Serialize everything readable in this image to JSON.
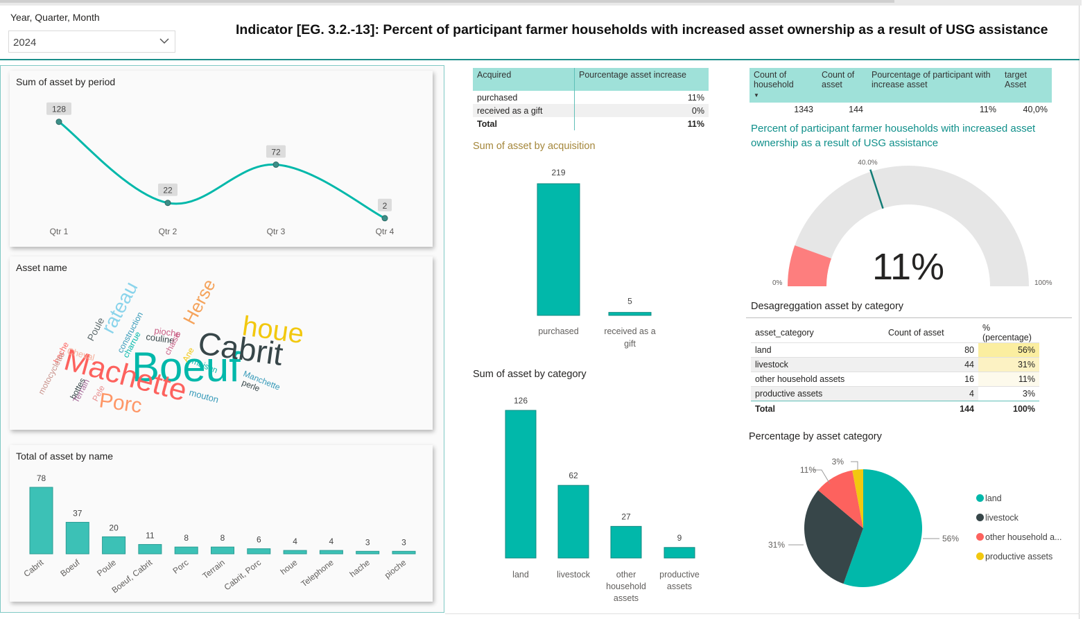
{
  "slicer": {
    "label": "Year, Quarter, Month",
    "value": "2024"
  },
  "title": "Indicator [EG. 3.2.-13]: Percent of participant farmer households with increased asset ownership as a result of USG assistance",
  "colors": {
    "teal": "#01b8aa",
    "dark": "#374649",
    "red": "#fd625e",
    "yellow": "#f2c80f",
    "header": "#9fe1d9"
  },
  "period_chart": {
    "title": "Sum of asset by period",
    "chart_data": {
      "type": "line",
      "x": [
        "Qtr 1",
        "Qtr 2",
        "Qtr 3",
        "Qtr 4"
      ],
      "values": [
        128,
        22,
        72,
        2
      ],
      "labels": [
        "128",
        "22",
        "72",
        "2"
      ]
    }
  },
  "wordcloud": {
    "title": "Asset name",
    "words": [
      "Boeuf",
      "Machette",
      "Cabrit",
      "houe",
      "Porc",
      "Herse",
      "rateau",
      "Poule",
      "couline",
      "pioche",
      "construction",
      "charrue",
      "chaise",
      "Cheval",
      "hache",
      "motocyclette",
      "bottes",
      "Terrain",
      "Pele",
      "Ane",
      "maison",
      "Manchette",
      "perle",
      "mouton"
    ]
  },
  "name_chart": {
    "title": "Total of asset by name",
    "chart_data": {
      "type": "bar",
      "categories": [
        "Cabrit",
        "Boeuf",
        "Poule",
        "Boeuf, Cabrit",
        "Porc",
        "Terrain",
        "Cabrit, Porc",
        "houe",
        "Telephone",
        "hache",
        "pioche"
      ],
      "values": [
        78,
        37,
        20,
        11,
        8,
        8,
        6,
        4,
        4,
        3,
        3
      ],
      "labels": [
        "78",
        "37",
        "20",
        "11",
        "8",
        "8",
        "6",
        "4",
        "4",
        "3",
        "3"
      ]
    }
  },
  "acq_table": {
    "headers": [
      "Acquired",
      "Pourcentage asset increase"
    ],
    "rows": [
      [
        "purchased",
        "11%"
      ],
      [
        "received as a gift",
        "0%"
      ]
    ],
    "total": [
      "Total",
      "11%"
    ]
  },
  "acq_chart": {
    "title": "Sum of asset by acquisition",
    "chart_data": {
      "type": "bar",
      "categories": [
        "purchased",
        "received as a gift"
      ],
      "category_lines": [
        [
          "purchased"
        ],
        [
          "received as a",
          "gift"
        ]
      ],
      "values": [
        219,
        5
      ],
      "labels": [
        "219",
        "5"
      ]
    }
  },
  "cat_chart": {
    "title": "Sum of asset by category",
    "chart_data": {
      "type": "bar",
      "categories": [
        "land",
        "livestock",
        "other household assets",
        "productive assets"
      ],
      "category_lines": [
        [
          "land"
        ],
        [
          "livestock"
        ],
        [
          "other",
          "household",
          "assets"
        ],
        [
          "productive",
          "assets"
        ]
      ],
      "values": [
        126,
        62,
        27,
        9
      ],
      "labels": [
        "126",
        "62",
        "27",
        "9"
      ]
    }
  },
  "kpi_table": {
    "headers": [
      [
        "Count of",
        "household"
      ],
      [
        "Count of",
        "asset"
      ],
      [
        "Pourcentage of participant with",
        "increase asset"
      ],
      [
        "target",
        "Asset"
      ]
    ],
    "row": [
      "1343",
      "144",
      "11%",
      "40,0%"
    ]
  },
  "gauge": {
    "title": "Percent of participant farmer households with increased asset ownership as a result of USG assistance",
    "value": 11,
    "value_label": "11%",
    "target": 40,
    "target_label": "40.0%",
    "min_label": "0%",
    "max_label": "100%"
  },
  "desag": {
    "title": "Desagreggation asset by category",
    "headers": [
      "asset_category",
      "Count of asset",
      "% (percentage)"
    ],
    "rows": [
      {
        "cat": "land",
        "count": "80",
        "pct": "56%",
        "shade": "#fbeea0"
      },
      {
        "cat": "livestock",
        "count": "44",
        "pct": "31%",
        "shade": "#fcf2c3"
      },
      {
        "cat": "other household assets",
        "count": "16",
        "pct": "11%",
        "shade": "#fdfaec"
      },
      {
        "cat": "productive assets",
        "count": "4",
        "pct": "3%",
        "shade": "#ffffff"
      }
    ],
    "total": {
      "cat": "Total",
      "count": "144",
      "pct": "100%"
    }
  },
  "pie": {
    "title": "Percentage by asset category",
    "chart_data": {
      "type": "pie",
      "categories": [
        "land",
        "livestock",
        "other household assets",
        "productive assets"
      ],
      "values": [
        56,
        31,
        11,
        3
      ],
      "labels": [
        "56%",
        "31%",
        "11%",
        "3%"
      ]
    },
    "legend": [
      "land",
      "livestock",
      "other household a...",
      "productive assets"
    ]
  }
}
